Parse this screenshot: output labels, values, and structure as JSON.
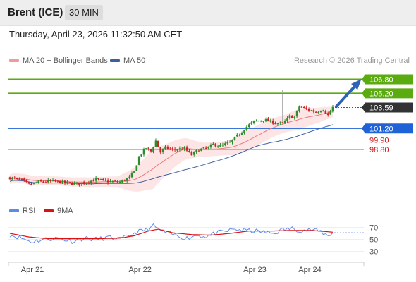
{
  "header": {
    "instrument": "Brent (ICE)",
    "timeframe": "30 MIN",
    "timestamp": "Thursday, April 23, 2026 11:32:50 AM CET"
  },
  "credit": "Research © 2026 Trading Central",
  "colors": {
    "resistance": "#5aab10",
    "pivot": "#1f63d6",
    "support": "#e57373",
    "support_text": "#cc1111",
    "price_label": "#333333",
    "bollinger_fill": "#fde0e0",
    "ma20": "#ec7a7a",
    "ma50": "#3d5f9e",
    "candle_up": "#2e8b2e",
    "candle_down": "#cc2222",
    "rsi": "#5b8be8",
    "rsi_ma": "#dd1111",
    "arrow": "#2d62b5"
  },
  "chart_data": [
    {
      "type": "candlestick",
      "legend": [
        "MA 20 + Bollinger Bands",
        "MA 50"
      ],
      "ylim": [
        94.0,
        107.8
      ],
      "levels": [
        {
          "value": 106.8,
          "label": "106.80",
          "kind": "resistance"
        },
        {
          "value": 105.2,
          "label": "105.20",
          "kind": "resistance"
        },
        {
          "value": 103.59,
          "label": "103.59",
          "kind": "last"
        },
        {
          "value": 101.2,
          "label": "101.20",
          "kind": "pivot"
        },
        {
          "value": 99.9,
          "label": "99.90",
          "kind": "support"
        },
        {
          "value": 98.8,
          "label": "98.80",
          "kind": "support"
        }
      ],
      "anchors": [
        [
          0,
          95.6
        ],
        [
          5,
          95.3
        ],
        [
          8,
          94.8
        ],
        [
          12,
          95.1
        ],
        [
          18,
          95.2
        ],
        [
          24,
          95.0
        ],
        [
          28,
          94.9
        ],
        [
          32,
          95.1
        ],
        [
          36,
          95.4
        ],
        [
          40,
          95.2
        ],
        [
          46,
          95.1
        ],
        [
          50,
          95.6
        ],
        [
          52,
          96.3
        ],
        [
          54,
          98.0
        ],
        [
          57,
          99.0
        ],
        [
          59,
          98.6
        ],
        [
          61,
          99.8
        ],
        [
          63,
          98.5
        ],
        [
          65,
          99.0
        ],
        [
          68,
          98.8
        ],
        [
          73,
          98.9
        ],
        [
          76,
          98.2
        ],
        [
          79,
          98.8
        ],
        [
          83,
          99.0
        ],
        [
          85,
          99.4
        ],
        [
          88,
          99.2
        ],
        [
          92,
          99.6
        ],
        [
          96,
          100.6
        ],
        [
          99,
          101.4
        ],
        [
          102,
          102.0
        ],
        [
          106,
          102.2
        ],
        [
          110,
          101.9
        ],
        [
          114,
          101.7
        ],
        [
          117,
          102.6
        ],
        [
          119,
          102.5
        ],
        [
          121,
          103.7
        ],
        [
          125,
          103.3
        ],
        [
          128,
          103.1
        ],
        [
          131,
          103.4
        ],
        [
          133,
          102.7
        ],
        [
          135,
          103.6
        ]
      ],
      "bollinger_width": [
        [
          0,
          0.55
        ],
        [
          20,
          0.5
        ],
        [
          45,
          0.6
        ],
        [
          55,
          1.7
        ],
        [
          60,
          2.3
        ],
        [
          66,
          1.7
        ],
        [
          80,
          0.8
        ],
        [
          90,
          0.8
        ],
        [
          100,
          1.2
        ],
        [
          115,
          1.0
        ],
        [
          121,
          1.2
        ],
        [
          135,
          0.6
        ]
      ],
      "spike": {
        "bar": 114,
        "high": 105.6
      },
      "arrow": {
        "from_value": 103.7,
        "to_value": 106.5
      }
    },
    {
      "type": "line",
      "legend": [
        "RSI",
        "9MA"
      ],
      "ylim": [
        20,
        80
      ],
      "ticks": [
        "70",
        "50",
        "30"
      ],
      "tick_values": [
        70,
        50,
        30
      ],
      "x_ticks": [
        "Apr 21",
        "Apr 22",
        "Apr 23",
        "Apr 24"
      ],
      "x_tick_bars": [
        0,
        45,
        93,
        116
      ],
      "last_value": 61,
      "rsi_anchors": [
        [
          0,
          58
        ],
        [
          5,
          52
        ],
        [
          9,
          46
        ],
        [
          14,
          50
        ],
        [
          20,
          52
        ],
        [
          26,
          47
        ],
        [
          31,
          52
        ],
        [
          36,
          50
        ],
        [
          41,
          53
        ],
        [
          46,
          50
        ],
        [
          50,
          56
        ],
        [
          53,
          62
        ],
        [
          57,
          66
        ],
        [
          60,
          72
        ],
        [
          64,
          63
        ],
        [
          68,
          58
        ],
        [
          74,
          52
        ],
        [
          78,
          57
        ],
        [
          82,
          55
        ],
        [
          86,
          60
        ],
        [
          90,
          63
        ],
        [
          94,
          67
        ],
        [
          98,
          65
        ],
        [
          102,
          64
        ],
        [
          106,
          62
        ],
        [
          110,
          60
        ],
        [
          114,
          66
        ],
        [
          118,
          68
        ],
        [
          122,
          65
        ],
        [
          126,
          66
        ],
        [
          130,
          63
        ],
        [
          133,
          56
        ],
        [
          135,
          61
        ]
      ],
      "ma_anchors": [
        [
          0,
          60
        ],
        [
          8,
          54
        ],
        [
          16,
          51
        ],
        [
          26,
          51
        ],
        [
          36,
          51
        ],
        [
          46,
          52
        ],
        [
          52,
          56
        ],
        [
          58,
          64
        ],
        [
          62,
          67
        ],
        [
          68,
          61
        ],
        [
          76,
          58
        ],
        [
          84,
          57
        ],
        [
          92,
          60
        ],
        [
          100,
          64
        ],
        [
          110,
          64
        ],
        [
          118,
          65
        ],
        [
          126,
          65
        ],
        [
          135,
          62
        ]
      ]
    }
  ]
}
